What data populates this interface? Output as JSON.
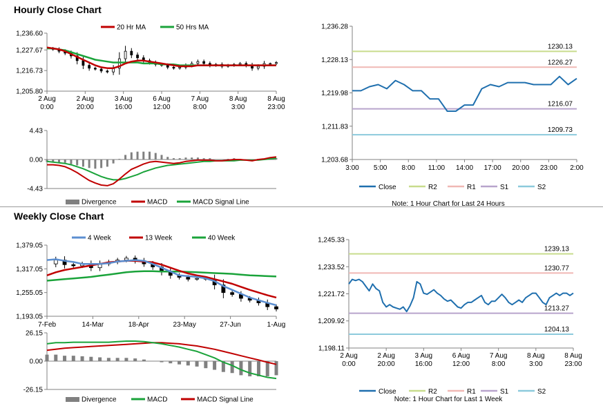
{
  "sections": {
    "hourly_title": "Hourly Close Chart",
    "weekly_title": "Weekly Close Chart"
  },
  "colors": {
    "ma_red": "#c00000",
    "ma_green": "#1aa33a",
    "ma_blue": "#5b8ed0",
    "close_blue": "#1f6fae",
    "r2": "#c8dc8c",
    "r1": "#f0b8b4",
    "s1": "#b8a4cc",
    "s2": "#8ccadc",
    "divergence": "#808080",
    "axis": "#808080"
  },
  "chart_data": [
    {
      "id": "hourly_price",
      "type": "line",
      "title": "Hourly Close Chart",
      "legend": [
        "20 Hr MA",
        "50 Hrs MA"
      ],
      "ylim": [
        1205.8,
        1236.6
      ],
      "yticks": [
        "1,236.60",
        "1,227.67",
        "1,216.73",
        "1,205.80"
      ],
      "ytick_values": [
        1236.6,
        1227.67,
        1216.73,
        1205.8
      ],
      "xticks": [
        [
          "2 Aug",
          "0:00"
        ],
        [
          "2 Aug",
          "20:00"
        ],
        [
          "3 Aug",
          "16:00"
        ],
        [
          "6 Aug",
          "12:00"
        ],
        [
          "7 Aug",
          "8:00"
        ],
        [
          "8 Aug",
          "3:00"
        ],
        [
          "8 Aug",
          "23:00"
        ]
      ],
      "price": [
        1228.5,
        1228,
        1227,
        1226,
        1224.5,
        1222,
        1219.5,
        1218,
        1217.5,
        1216.5,
        1216,
        1218,
        1223,
        1227,
        1225,
        1223.5,
        1222,
        1221,
        1220,
        1219.5,
        1218.5,
        1218,
        1218.5,
        1219.5,
        1220.5,
        1221.5,
        1220.5,
        1219.5,
        1220,
        1219,
        1219.5,
        1220,
        1220.5,
        1219.5,
        1218,
        1219,
        1220.5,
        1220.5,
        1221
      ],
      "series": [
        {
          "name": "20 Hr MA",
          "values": [
            1229,
            1228.5,
            1228,
            1227,
            1225.5,
            1224,
            1222.5,
            1221,
            1219.5,
            1218.5,
            1218,
            1218,
            1219,
            1220.5,
            1221.5,
            1222,
            1222,
            1221.5,
            1221,
            1220.5,
            1220,
            1219.5,
            1219,
            1219,
            1219,
            1219.5,
            1219.5,
            1219.5,
            1219.5,
            1219.5,
            1219.5,
            1219.5,
            1219.5,
            1219.5,
            1219.5,
            1219.5,
            1219.5,
            1219.5,
            1219.5
          ]
        },
        {
          "name": "50 Hrs MA",
          "values": [
            1228.5,
            1228.5,
            1228,
            1227.5,
            1226.5,
            1225.5,
            1224.5,
            1223.5,
            1222.5,
            1222,
            1221.5,
            1221,
            1221,
            1221,
            1221,
            1221,
            1220.5,
            1220.5,
            1220.5,
            1220,
            1220,
            1220,
            1219.5,
            1219.5,
            1219.5,
            1219.5,
            1219.5,
            1219.5,
            1219.5,
            1219.5,
            1219.5,
            1219.5,
            1219.5,
            1219.5,
            1219.5,
            1219.5,
            1219.5,
            1219.5,
            1219.5
          ]
        }
      ]
    },
    {
      "id": "hourly_macd",
      "type": "line",
      "ylim": [
        -4.43,
        4.43
      ],
      "yticks": [
        "4.43",
        "0.00",
        "-4.43"
      ],
      "ytick_values": [
        4.43,
        0,
        -4.43
      ],
      "legend": [
        "Divergence",
        "MACD",
        "MACD Signal Line"
      ],
      "series": [
        {
          "name": "MACD",
          "values": [
            -0.8,
            -0.8,
            -0.9,
            -1.1,
            -1.5,
            -2.0,
            -2.6,
            -3.2,
            -3.6,
            -3.9,
            -4.0,
            -3.7,
            -3.0,
            -2.2,
            -1.5,
            -1.1,
            -0.7,
            -0.4,
            -0.3,
            -0.4,
            -0.5,
            -0.6,
            -0.5,
            -0.3,
            -0.2,
            -0.1,
            -0.1,
            -0.1,
            -0.2,
            -0.2,
            -0.1,
            0.0,
            0.0,
            -0.1,
            -0.2,
            0.0,
            0.1,
            0.3,
            0.4
          ]
        },
        {
          "name": "MACD Signal Line",
          "values": [
            -0.3,
            -0.4,
            -0.5,
            -0.6,
            -0.8,
            -1.1,
            -1.4,
            -1.8,
            -2.2,
            -2.6,
            -2.9,
            -3.1,
            -3.1,
            -2.9,
            -2.6,
            -2.3,
            -1.9,
            -1.6,
            -1.3,
            -1.1,
            -0.9,
            -0.8,
            -0.7,
            -0.6,
            -0.5,
            -0.4,
            -0.3,
            -0.3,
            -0.2,
            -0.2,
            -0.2,
            -0.2,
            -0.1,
            -0.1,
            -0.1,
            -0.1,
            0.0,
            0.1,
            0.2
          ]
        },
        {
          "name": "Divergence",
          "values": [
            -0.4,
            -0.4,
            -0.5,
            -0.5,
            -0.7,
            -0.9,
            -1.1,
            -1.3,
            -1.4,
            -1.3,
            -1.1,
            -0.6,
            0.1,
            0.7,
            1.1,
            1.2,
            1.2,
            1.2,
            1.0,
            0.7,
            0.4,
            0.2,
            0.2,
            0.3,
            0.3,
            0.3,
            0.2,
            0.2,
            0.0,
            0.0,
            0.1,
            0.2,
            0.1,
            0.0,
            -0.1,
            0.1,
            0.1,
            0.2,
            0.2
          ]
        }
      ]
    },
    {
      "id": "hourly_levels",
      "type": "line",
      "ylim": [
        1203.68,
        1236.28
      ],
      "yticks": [
        "1,236.28",
        "1,228.13",
        "1,219.98",
        "1,211.83",
        "1,203.68"
      ],
      "ytick_values": [
        1236.28,
        1228.13,
        1219.98,
        1211.83,
        1203.68
      ],
      "xticks": [
        "3:00",
        "5:00",
        "8:00",
        "11:00",
        "14:00",
        "17:00",
        "20:00",
        "23:00",
        "2:00"
      ],
      "close": [
        1220.5,
        1220.5,
        1221.5,
        1222,
        1221,
        1223,
        1222,
        1220.5,
        1220.5,
        1218.5,
        1218.5,
        1215.5,
        1215.5,
        1217,
        1217,
        1221,
        1222,
        1221.5,
        1222.5,
        1222.5,
        1222.5,
        1222,
        1222,
        1222,
        1224,
        1222,
        1223.5
      ],
      "levels": [
        {
          "name": "R2",
          "value": 1230.13,
          "label": "1230.13"
        },
        {
          "name": "R1",
          "value": 1226.27,
          "label": "1226.27"
        },
        {
          "name": "S1",
          "value": 1216.07,
          "label": "1216.07"
        },
        {
          "name": "S2",
          "value": 1209.73,
          "label": "1209.73"
        }
      ],
      "legend": [
        "Close",
        "R2",
        "R1",
        "S1",
        "S2"
      ],
      "note": "Note: 1 Hour Chart for Last 24 Hours"
    },
    {
      "id": "weekly_price",
      "type": "line",
      "title": "Weekly Close Chart",
      "legend": [
        "4 Week",
        "13 Week",
        "40 Week"
      ],
      "ylim": [
        1193.05,
        1379.05
      ],
      "yticks": [
        "1,379.05",
        "1,317.05",
        "1,255.05",
        "1,193.05"
      ],
      "ytick_values": [
        1379.05,
        1317.05,
        1255.05,
        1193.05
      ],
      "xticks": [
        "7-Feb",
        "14-Mar",
        "18-Apr",
        "23-May",
        "27-Jun",
        "1-Aug"
      ],
      "price": [
        1330,
        1340,
        1328,
        1325,
        1330,
        1320,
        1330,
        1335,
        1340,
        1345,
        1338,
        1330,
        1322,
        1310,
        1300,
        1295,
        1290,
        1292,
        1290,
        1275,
        1255,
        1250,
        1240,
        1235,
        1228,
        1218,
        1212
      ],
      "series": [
        {
          "name": "4 Week",
          "values": [
            1340,
            1342,
            1338,
            1335,
            1330,
            1330,
            1330,
            1332,
            1336,
            1338,
            1340,
            1338,
            1330,
            1320,
            1310,
            1300,
            1298,
            1296,
            1292,
            1285,
            1272,
            1262,
            1252,
            1242,
            1235,
            1228,
            1222
          ]
        },
        {
          "name": "13 Week",
          "values": [
            1300,
            1308,
            1314,
            1318,
            1322,
            1326,
            1330,
            1334,
            1336,
            1338,
            1338,
            1336,
            1334,
            1328,
            1320,
            1312,
            1305,
            1300,
            1296,
            1290,
            1284,
            1278,
            1270,
            1262,
            1255,
            1248,
            1242
          ]
        },
        {
          "name": "40 Week",
          "values": [
            1286,
            1288,
            1290,
            1292,
            1294,
            1296,
            1299,
            1302,
            1305,
            1308,
            1310,
            1311,
            1311,
            1310,
            1310,
            1310,
            1309,
            1308,
            1307,
            1306,
            1305,
            1304,
            1302,
            1300,
            1299,
            1298,
            1297
          ]
        }
      ]
    },
    {
      "id": "weekly_macd",
      "type": "line",
      "ylim": [
        -26.15,
        26.15
      ],
      "yticks": [
        "26.15",
        "0.00",
        "-26.15"
      ],
      "ytick_values": [
        26.15,
        0,
        -26.15
      ],
      "legend": [
        "Divergence",
        "MACD",
        "MACD Signal Line"
      ],
      "series": [
        {
          "name": "MACD",
          "values": [
            16,
            17,
            17,
            17.5,
            17.5,
            17.5,
            17.5,
            17.5,
            18,
            18.5,
            18.5,
            18,
            17,
            16,
            14.5,
            13,
            11,
            9,
            6,
            3,
            -1,
            -4,
            -8,
            -11,
            -13,
            -15,
            -16
          ]
        },
        {
          "name": "MACD Signal Line",
          "values": [
            10,
            11,
            12,
            12.5,
            13,
            13.5,
            14,
            14.5,
            15,
            15.5,
            16,
            16.5,
            17,
            17,
            16.5,
            16,
            15,
            14,
            12.5,
            11,
            9,
            7,
            5,
            3,
            1,
            -1,
            -3
          ]
        },
        {
          "name": "Divergence",
          "values": [
            6,
            6,
            5,
            5,
            4.5,
            4,
            3.5,
            3,
            3,
            3,
            2.5,
            1.5,
            0,
            -1,
            -2,
            -3,
            -4,
            -5,
            -6.5,
            -8,
            -10,
            -11,
            -13,
            -14,
            -14,
            -14,
            -13
          ]
        }
      ]
    },
    {
      "id": "weekly_levels",
      "type": "line",
      "ylim": [
        1198.11,
        1245.33
      ],
      "yticks": [
        "1,245.33",
        "1,233.52",
        "1,221.72",
        "1,209.92",
        "1,198.11"
      ],
      "ytick_values": [
        1245.33,
        1233.52,
        1221.72,
        1209.92,
        1198.11
      ],
      "xticks": [
        [
          "2 Aug",
          "0:00"
        ],
        [
          "2 Aug",
          "20:00"
        ],
        [
          "3 Aug",
          "16:00"
        ],
        [
          "6 Aug",
          "12:00"
        ],
        [
          "7 Aug",
          "8:00"
        ],
        [
          "8 Aug",
          "3:00"
        ],
        [
          "8 Aug",
          "23:00"
        ]
      ],
      "close": [
        1226,
        1228,
        1227.5,
        1228,
        1227,
        1225,
        1223,
        1226,
        1224,
        1223,
        1218,
        1216,
        1217,
        1216,
        1215.5,
        1215,
        1216,
        1214,
        1216.5,
        1220,
        1227,
        1226,
        1222,
        1221.5,
        1222.5,
        1223.5,
        1222,
        1221,
        1219.5,
        1218.5,
        1219,
        1217.5,
        1216,
        1215.5,
        1217,
        1218,
        1218,
        1219,
        1220,
        1221,
        1218,
        1217,
        1218.5,
        1218.5,
        1220,
        1221.5,
        1220,
        1218,
        1217,
        1218,
        1219,
        1218,
        1220,
        1221,
        1222,
        1222,
        1220,
        1218,
        1217,
        1220,
        1221,
        1222,
        1221,
        1222,
        1222,
        1221,
        1222
      ],
      "levels": [
        {
          "name": "R2",
          "value": 1239.13,
          "label": "1239.13"
        },
        {
          "name": "R1",
          "value": 1230.77,
          "label": "1230.77"
        },
        {
          "name": "S1",
          "value": 1213.27,
          "label": "1213.27"
        },
        {
          "name": "S2",
          "value": 1204.13,
          "label": "1204.13"
        }
      ],
      "legend": [
        "Close",
        "R2",
        "R1",
        "S1",
        "S2"
      ],
      "note": "Note: 1 Hour Chart for Last 1 Week"
    }
  ]
}
